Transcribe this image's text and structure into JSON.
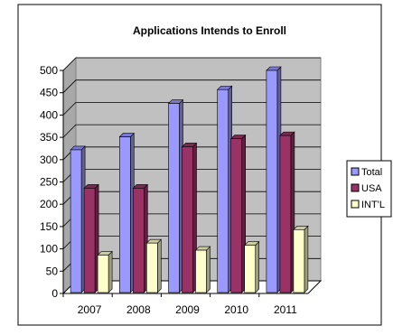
{
  "chart_data": {
    "type": "bar",
    "title": "Applications Intends to Enroll",
    "xlabel": "",
    "ylabel": "",
    "categories": [
      "2007",
      "2008",
      "2009",
      "2010",
      "2011"
    ],
    "y_ticks": [
      "0",
      "50",
      "100",
      "150",
      "200",
      "250",
      "300",
      "350",
      "400",
      "450",
      "500"
    ],
    "ylim": [
      0,
      500
    ],
    "grid": true,
    "legend_position": "right",
    "series": [
      {
        "name": "Total",
        "values": [
          322,
          351,
          426,
          457,
          500
        ],
        "color": "#9999ff"
      },
      {
        "name": "USA",
        "values": [
          236,
          236,
          329,
          347,
          354
        ],
        "color": "#993366"
      },
      {
        "name": "INT'L",
        "values": [
          86,
          113,
          97,
          108,
          143
        ],
        "color": "#ffffcc"
      }
    ],
    "plot_area_color": "#c0c0c0"
  }
}
